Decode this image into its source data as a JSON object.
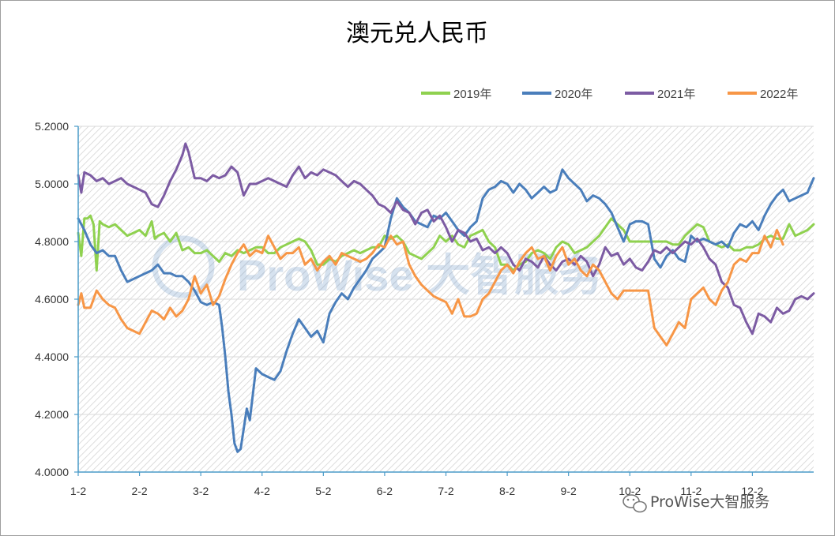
{
  "chart_data": {
    "type": "line",
    "title": "澳元兑人民币",
    "xlabel": "",
    "ylabel": "",
    "ylim": [
      4.0,
      5.2
    ],
    "yticks": [
      "4.0000",
      "4.2000",
      "4.4000",
      "4.6000",
      "4.8000",
      "5.0000",
      "5.2000"
    ],
    "xticks": [
      "1-2",
      "2-2",
      "3-2",
      "4-2",
      "5-2",
      "6-2",
      "7-2",
      "8-2",
      "9-2",
      "10-2",
      "11-2",
      "12-2"
    ],
    "x_unit": "month index (1.0 = 1-2, 12.0 = 12-2)",
    "xlim": [
      1.0,
      13.0
    ],
    "legend_position": "top-right",
    "grid": "horizontal",
    "background": "hatched",
    "series": [
      {
        "name": "2019年",
        "color": "#8fd14f",
        "x": [
          1.0,
          1.05,
          1.1,
          1.15,
          1.2,
          1.25,
          1.3,
          1.35,
          1.4,
          1.5,
          1.6,
          1.7,
          1.8,
          1.9,
          2.0,
          2.1,
          2.2,
          2.25,
          2.3,
          2.4,
          2.5,
          2.6,
          2.7,
          2.8,
          2.9,
          3.0,
          3.1,
          3.2,
          3.3,
          3.4,
          3.5,
          3.6,
          3.7,
          3.8,
          3.9,
          4.0,
          4.1,
          4.2,
          4.3,
          4.4,
          4.5,
          4.6,
          4.7,
          4.8,
          4.9,
          5.0,
          5.1,
          5.2,
          5.3,
          5.4,
          5.5,
          5.6,
          5.7,
          5.8,
          5.9,
          6.0,
          6.1,
          6.2,
          6.3,
          6.4,
          6.5,
          6.6,
          6.7,
          6.8,
          6.9,
          7.0,
          7.1,
          7.2,
          7.3,
          7.4,
          7.5,
          7.6,
          7.7,
          7.8,
          7.9,
          8.0,
          8.1,
          8.2,
          8.3,
          8.4,
          8.5,
          8.6,
          8.7,
          8.8,
          8.9,
          9.0,
          9.1,
          9.2,
          9.3,
          9.4,
          9.5,
          9.6,
          9.7,
          9.8,
          9.9,
          10.0,
          10.1,
          10.2,
          10.3,
          10.4,
          10.5,
          10.6,
          10.7,
          10.8,
          10.9,
          11.0,
          11.1,
          11.2,
          11.3,
          11.4,
          11.5,
          11.6,
          11.7,
          11.8,
          11.9,
          12.0,
          12.1,
          12.2,
          12.3,
          12.4,
          12.5,
          12.6,
          12.7,
          12.8,
          12.9,
          13.0
        ],
        "values": [
          4.83,
          4.75,
          4.88,
          4.88,
          4.89,
          4.86,
          4.7,
          4.87,
          4.86,
          4.85,
          4.86,
          4.84,
          4.82,
          4.83,
          4.84,
          4.82,
          4.87,
          4.81,
          4.82,
          4.83,
          4.8,
          4.83,
          4.77,
          4.78,
          4.76,
          4.76,
          4.77,
          4.75,
          4.73,
          4.76,
          4.75,
          4.77,
          4.76,
          4.77,
          4.78,
          4.78,
          4.76,
          4.76,
          4.78,
          4.79,
          4.8,
          4.81,
          4.8,
          4.77,
          4.72,
          4.72,
          4.74,
          4.73,
          4.75,
          4.76,
          4.77,
          4.76,
          4.77,
          4.78,
          4.78,
          4.82,
          4.81,
          4.82,
          4.8,
          4.76,
          4.75,
          4.74,
          4.76,
          4.78,
          4.82,
          4.8,
          4.82,
          4.79,
          4.78,
          4.82,
          4.83,
          4.84,
          4.8,
          4.78,
          4.72,
          4.72,
          4.7,
          4.72,
          4.73,
          4.76,
          4.77,
          4.76,
          4.74,
          4.78,
          4.8,
          4.79,
          4.76,
          4.77,
          4.78,
          4.8,
          4.82,
          4.85,
          4.88,
          4.86,
          4.84,
          4.8,
          4.8,
          4.8,
          4.8,
          4.8,
          4.8,
          4.8,
          4.79,
          4.79,
          4.82,
          4.84,
          4.86,
          4.85,
          4.8,
          4.79,
          4.78,
          4.79,
          4.77,
          4.77,
          4.78,
          4.78,
          4.79,
          4.81,
          4.82,
          4.81,
          4.81,
          4.86,
          4.82,
          4.83,
          4.84,
          4.86
        ]
      },
      {
        "name": "2020年",
        "color": "#4a7ebb",
        "x": [
          1.0,
          1.1,
          1.2,
          1.3,
          1.4,
          1.5,
          1.6,
          1.7,
          1.8,
          1.9,
          2.0,
          2.1,
          2.2,
          2.3,
          2.4,
          2.5,
          2.6,
          2.7,
          2.8,
          2.9,
          3.0,
          3.1,
          3.2,
          3.3,
          3.35,
          3.4,
          3.45,
          3.5,
          3.55,
          3.6,
          3.65,
          3.7,
          3.75,
          3.8,
          3.9,
          4.0,
          4.1,
          4.2,
          4.3,
          4.4,
          4.5,
          4.6,
          4.7,
          4.8,
          4.9,
          5.0,
          5.1,
          5.2,
          5.3,
          5.4,
          5.5,
          5.6,
          5.7,
          5.8,
          5.9,
          6.0,
          6.1,
          6.2,
          6.3,
          6.4,
          6.5,
          6.6,
          6.7,
          6.8,
          6.9,
          7.0,
          7.1,
          7.2,
          7.3,
          7.4,
          7.5,
          7.6,
          7.7,
          7.8,
          7.9,
          8.0,
          8.1,
          8.2,
          8.3,
          8.4,
          8.5,
          8.6,
          8.7,
          8.8,
          8.9,
          9.0,
          9.1,
          9.2,
          9.3,
          9.4,
          9.5,
          9.6,
          9.7,
          9.8,
          9.9,
          10.0,
          10.1,
          10.2,
          10.3,
          10.4,
          10.5,
          10.6,
          10.7,
          10.8,
          10.9,
          11.0,
          11.1,
          11.2,
          11.3,
          11.4,
          11.5,
          11.6,
          11.7,
          11.8,
          11.9,
          12.0,
          12.1,
          12.2,
          12.3,
          12.4,
          12.5,
          12.6,
          12.7,
          12.8,
          12.9,
          13.0
        ],
        "values": [
          4.88,
          4.84,
          4.79,
          4.76,
          4.77,
          4.75,
          4.75,
          4.7,
          4.66,
          4.67,
          4.68,
          4.69,
          4.7,
          4.72,
          4.69,
          4.69,
          4.68,
          4.68,
          4.66,
          4.63,
          4.59,
          4.58,
          4.59,
          4.58,
          4.5,
          4.4,
          4.28,
          4.2,
          4.1,
          4.07,
          4.08,
          4.15,
          4.22,
          4.18,
          4.36,
          4.34,
          4.33,
          4.32,
          4.35,
          4.42,
          4.48,
          4.53,
          4.5,
          4.47,
          4.49,
          4.45,
          4.55,
          4.59,
          4.62,
          4.6,
          4.64,
          4.67,
          4.7,
          4.74,
          4.76,
          4.78,
          4.88,
          4.95,
          4.92,
          4.9,
          4.87,
          4.86,
          4.85,
          4.89,
          4.88,
          4.9,
          4.87,
          4.84,
          4.82,
          4.85,
          4.87,
          4.95,
          4.98,
          4.99,
          5.01,
          5.0,
          4.97,
          5.0,
          4.98,
          4.95,
          4.97,
          4.99,
          4.97,
          4.98,
          5.05,
          5.02,
          5.0,
          4.98,
          4.94,
          4.96,
          4.95,
          4.93,
          4.9,
          4.85,
          4.8,
          4.86,
          4.87,
          4.87,
          4.86,
          4.74,
          4.71,
          4.75,
          4.77,
          4.74,
          4.73,
          4.82,
          4.8,
          4.81,
          4.8,
          4.79,
          4.8,
          4.78,
          4.83,
          4.86,
          4.85,
          4.87,
          4.84,
          4.89,
          4.93,
          4.96,
          4.98,
          4.94,
          4.95,
          4.96,
          4.97,
          5.02
        ]
      },
      {
        "name": "2021年",
        "color": "#7c5ba3",
        "x": [
          1.0,
          1.05,
          1.1,
          1.2,
          1.3,
          1.4,
          1.5,
          1.6,
          1.7,
          1.8,
          1.9,
          2.0,
          2.1,
          2.2,
          2.3,
          2.4,
          2.5,
          2.6,
          2.7,
          2.75,
          2.8,
          2.9,
          3.0,
          3.1,
          3.2,
          3.3,
          3.4,
          3.5,
          3.6,
          3.7,
          3.8,
          3.9,
          4.0,
          4.1,
          4.2,
          4.3,
          4.4,
          4.5,
          4.6,
          4.7,
          4.8,
          4.9,
          5.0,
          5.1,
          5.2,
          5.3,
          5.4,
          5.5,
          5.6,
          5.7,
          5.8,
          5.9,
          6.0,
          6.1,
          6.2,
          6.3,
          6.4,
          6.5,
          6.6,
          6.7,
          6.8,
          6.9,
          7.0,
          7.1,
          7.2,
          7.3,
          7.4,
          7.5,
          7.6,
          7.7,
          7.8,
          7.9,
          8.0,
          8.1,
          8.2,
          8.3,
          8.4,
          8.5,
          8.6,
          8.7,
          8.8,
          8.9,
          9.0,
          9.1,
          9.2,
          9.3,
          9.4,
          9.5,
          9.6,
          9.7,
          9.8,
          9.9,
          10.0,
          10.1,
          10.2,
          10.3,
          10.4,
          10.5,
          10.6,
          10.7,
          10.8,
          10.9,
          11.0,
          11.1,
          11.2,
          11.3,
          11.4,
          11.5,
          11.6,
          11.7,
          11.8,
          11.9,
          12.0,
          12.1,
          12.2,
          12.3,
          12.4,
          12.5,
          12.6,
          12.7,
          12.8,
          12.9,
          13.0
        ],
        "values": [
          5.03,
          4.97,
          5.04,
          5.03,
          5.01,
          5.02,
          5.0,
          5.01,
          5.02,
          5.0,
          4.99,
          4.98,
          4.97,
          4.93,
          4.92,
          4.96,
          5.01,
          5.05,
          5.1,
          5.14,
          5.11,
          5.02,
          5.02,
          5.01,
          5.03,
          5.02,
          5.03,
          5.06,
          5.04,
          4.96,
          5.0,
          5.0,
          5.01,
          5.02,
          5.01,
          5.0,
          4.99,
          5.03,
          5.06,
          5.02,
          5.04,
          5.03,
          5.05,
          5.04,
          5.03,
          5.01,
          4.99,
          5.01,
          5.0,
          4.98,
          4.96,
          4.93,
          4.92,
          4.9,
          4.94,
          4.91,
          4.9,
          4.86,
          4.9,
          4.91,
          4.87,
          4.89,
          4.85,
          4.8,
          4.84,
          4.83,
          4.8,
          4.81,
          4.77,
          4.78,
          4.76,
          4.78,
          4.76,
          4.72,
          4.7,
          4.74,
          4.73,
          4.71,
          4.75,
          4.72,
          4.7,
          4.73,
          4.74,
          4.72,
          4.75,
          4.73,
          4.68,
          4.72,
          4.78,
          4.75,
          4.76,
          4.72,
          4.74,
          4.71,
          4.7,
          4.73,
          4.77,
          4.76,
          4.78,
          4.76,
          4.78,
          4.8,
          4.79,
          4.81,
          4.78,
          4.74,
          4.72,
          4.66,
          4.64,
          4.58,
          4.57,
          4.52,
          4.48,
          4.55,
          4.54,
          4.52,
          4.57,
          4.55,
          4.56,
          4.6,
          4.61,
          4.6,
          4.62
        ]
      },
      {
        "name": "2022年",
        "color": "#f79646",
        "x": [
          1.0,
          1.05,
          1.1,
          1.2,
          1.3,
          1.4,
          1.5,
          1.6,
          1.7,
          1.8,
          1.9,
          2.0,
          2.1,
          2.2,
          2.3,
          2.4,
          2.5,
          2.6,
          2.7,
          2.8,
          2.9,
          3.0,
          3.1,
          3.2,
          3.3,
          3.4,
          3.5,
          3.6,
          3.7,
          3.8,
          3.9,
          4.0,
          4.1,
          4.2,
          4.3,
          4.4,
          4.5,
          4.6,
          4.7,
          4.8,
          4.9,
          5.0,
          5.1,
          5.2,
          5.3,
          5.4,
          5.5,
          5.6,
          5.7,
          5.8,
          5.9,
          6.0,
          6.1,
          6.2,
          6.3,
          6.4,
          6.5,
          6.6,
          6.7,
          6.8,
          6.9,
          7.0,
          7.1,
          7.2,
          7.3,
          7.4,
          7.5,
          7.6,
          7.7,
          7.8,
          7.9,
          8.0,
          8.1,
          8.2,
          8.3,
          8.4,
          8.5,
          8.6,
          8.7,
          8.8,
          8.9,
          9.0,
          9.1,
          9.2,
          9.3,
          9.4,
          9.5,
          9.6,
          9.7,
          9.8,
          9.9,
          10.0,
          10.1,
          10.2,
          10.3,
          10.4,
          10.5,
          10.6,
          10.7,
          10.8,
          10.9,
          11.0,
          11.1,
          11.2,
          11.3,
          11.4,
          11.5,
          11.6,
          11.7,
          11.8,
          11.9,
          12.0,
          12.1,
          12.2,
          12.3,
          12.4,
          12.5
        ],
        "values": [
          4.58,
          4.62,
          4.57,
          4.57,
          4.63,
          4.6,
          4.58,
          4.57,
          4.53,
          4.5,
          4.49,
          4.48,
          4.52,
          4.56,
          4.55,
          4.53,
          4.57,
          4.54,
          4.56,
          4.6,
          4.68,
          4.62,
          4.65,
          4.58,
          4.61,
          4.67,
          4.72,
          4.76,
          4.79,
          4.75,
          4.77,
          4.76,
          4.82,
          4.78,
          4.74,
          4.76,
          4.76,
          4.78,
          4.72,
          4.74,
          4.7,
          4.73,
          4.75,
          4.72,
          4.76,
          4.75,
          4.74,
          4.73,
          4.74,
          4.76,
          4.79,
          4.78,
          4.82,
          4.79,
          4.8,
          4.72,
          4.68,
          4.65,
          4.63,
          4.61,
          4.6,
          4.59,
          4.55,
          4.6,
          4.54,
          4.54,
          4.55,
          4.6,
          4.62,
          4.66,
          4.7,
          4.72,
          4.69,
          4.73,
          4.76,
          4.78,
          4.74,
          4.75,
          4.7,
          4.75,
          4.78,
          4.72,
          4.74,
          4.7,
          4.68,
          4.72,
          4.7,
          4.66,
          4.62,
          4.6,
          4.63,
          4.63,
          4.63,
          4.63,
          4.63,
          4.5,
          4.47,
          4.44,
          4.48,
          4.52,
          4.5,
          4.6,
          4.62,
          4.64,
          4.6,
          4.58,
          4.63,
          4.66,
          4.72,
          4.74,
          4.73,
          4.76,
          4.76,
          4.82,
          4.78,
          4.84,
          4.79
        ]
      }
    ]
  },
  "watermark": {
    "text": "ProWise大智服务",
    "center_text": "ProWise 大智服务"
  }
}
